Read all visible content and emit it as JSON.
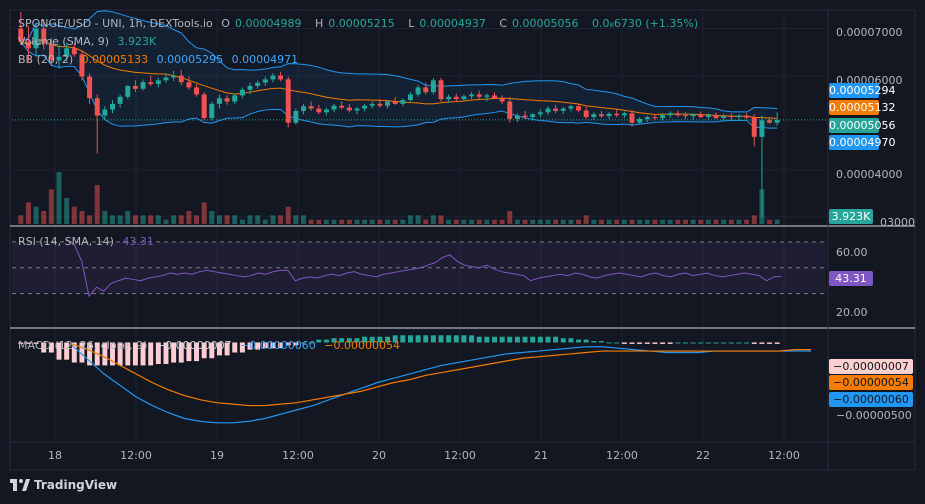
{
  "header": {
    "pair": "SPONGE/USD - UNI, 1h, DEXTools.io",
    "o_label": "O",
    "o_val": "0.00004989",
    "h_label": "H",
    "h_val": "0.00005215",
    "l_label": "L",
    "l_val": "0.00004937",
    "c_label": "C",
    "c_val": "0.00005056",
    "change": "0.0₈6730 (+1.35%)"
  },
  "volume_legend": {
    "label": "Volume (SMA, 9)",
    "value": "3.923K"
  },
  "bb_legend": {
    "label": "BB (20, 2)",
    "basis": "0.00005133",
    "upper": "0.00005295",
    "lower": "0.00004971"
  },
  "rsi_legend": {
    "label": "RSI (14, SMA, 14)",
    "value": "43.31"
  },
  "macd_legend": {
    "label": "MACD (12, 26, close, 9)",
    "hist": "−0.00000007",
    "macd": "−0.00000060",
    "signal": "−0.00000054"
  },
  "price_axis": {
    "ticks": [
      "0.00007000",
      "0.00006000",
      "0.00004000",
      "0.00003000"
    ]
  },
  "rsi_axis": {
    "ticks": [
      "60.00",
      "20.00"
    ]
  },
  "macd_axis": {
    "ticks": [
      "−0.00000500"
    ]
  },
  "tags": {
    "upper": "0.00005294",
    "basis": "0.00005132",
    "close": "0.00005056",
    "lower": "0.00004970",
    "volume": "3.923K",
    "rsi": "43.31",
    "hist": "−0.00000007",
    "signal": "−0.00000054",
    "macd": "−0.00000060"
  },
  "colors": {
    "up": "#26a69a",
    "down": "#ef5350",
    "bb": "#2196f3",
    "basis": "#f57c00",
    "rsi": "#7e57c2",
    "macd": "#2196f3",
    "signal": "#f57c00",
    "bg": "#131722"
  },
  "time_axis": {
    "labels": [
      "18",
      "12:00",
      "19",
      "12:00",
      "20",
      "12:00",
      "21",
      "12:00",
      "22",
      "12:00"
    ]
  },
  "footer": {
    "brand": "TradingView"
  },
  "chart_data": {
    "type": "candlestick",
    "xrange_hours": [
      0,
      108
    ],
    "price_ylim": [
      2.85e-05,
      7.35e-05
    ],
    "price_ticks": [
      7e-05,
      6e-05,
      4e-05,
      3e-05
    ],
    "rsi_ylim": [
      5,
      80
    ],
    "rsi_levels": [
      70,
      50,
      30
    ],
    "macd_ylim": [
      -6.8e-06,
      8e-07
    ],
    "label_hours": [
      0,
      12,
      24,
      36,
      48,
      60,
      72,
      84,
      96,
      108
    ],
    "candles": [
      [
        7e-05,
        7.35e-05,
        6.65e-05,
        6.72e-05
      ],
      [
        6.72e-05,
        7.05e-05,
        6.3e-05,
        6.58e-05
      ],
      [
        6.58e-05,
        7.12e-05,
        6.4e-05,
        7e-05
      ],
      [
        7e-05,
        7.2e-05,
        6.55e-05,
        6.68e-05
      ],
      [
        6.68e-05,
        6.8e-05,
        6.2e-05,
        6.32e-05
      ],
      [
        6.32e-05,
        6.65e-05,
        6.15e-05,
        6.4e-05
      ],
      [
        6.4e-05,
        6.7e-05,
        6.3e-05,
        6.58e-05
      ],
      [
        6.58e-05,
        6.68e-05,
        6.4e-05,
        6.45e-05
      ],
      [
        6.45e-05,
        6.52e-05,
        5.9e-05,
        5.98e-05
      ],
      [
        5.98e-05,
        6.05e-05,
        5.4e-05,
        5.52e-05
      ],
      [
        5.52e-05,
        5.6e-05,
        4.35e-05,
        5.15e-05
      ],
      [
        5.15e-05,
        5.35e-05,
        5.05e-05,
        5.28e-05
      ],
      [
        5.28e-05,
        5.48e-05,
        5.2e-05,
        5.4e-05
      ],
      [
        5.4e-05,
        5.6e-05,
        5.32e-05,
        5.55e-05
      ],
      [
        5.55e-05,
        5.8e-05,
        5.5e-05,
        5.78e-05
      ],
      [
        5.78e-05,
        5.9e-05,
        5.65e-05,
        5.72e-05
      ],
      [
        5.72e-05,
        5.92e-05,
        5.68e-05,
        5.86e-05
      ],
      [
        5.86e-05,
        6e-05,
        5.78e-05,
        5.82e-05
      ],
      [
        5.82e-05,
        5.95e-05,
        5.75e-05,
        5.9e-05
      ],
      [
        5.9e-05,
        6.05e-05,
        5.85e-05,
        5.96e-05
      ],
      [
        5.96e-05,
        6.1e-05,
        5.88e-05,
        6e-05
      ],
      [
        6e-05,
        6.12e-05,
        5.8e-05,
        5.86e-05
      ],
      [
        5.86e-05,
        5.98e-05,
        5.7e-05,
        5.75e-05
      ],
      [
        5.75e-05,
        5.82e-05,
        5.55e-05,
        5.6e-05
      ],
      [
        5.6e-05,
        5.65e-05,
        5.05e-05,
        5.1e-05
      ],
      [
        5.1e-05,
        5.45e-05,
        5.05e-05,
        5.4e-05
      ],
      [
        5.4e-05,
        5.6e-05,
        5.3e-05,
        5.52e-05
      ],
      [
        5.52e-05,
        5.58e-05,
        5.38e-05,
        5.45e-05
      ],
      [
        5.45e-05,
        5.62e-05,
        5.4e-05,
        5.58e-05
      ],
      [
        5.58e-05,
        5.75e-05,
        5.52e-05,
        5.7e-05
      ],
      [
        5.7e-05,
        5.85e-05,
        5.6e-05,
        5.78e-05
      ],
      [
        5.78e-05,
        5.9e-05,
        5.72e-05,
        5.85e-05
      ],
      [
        5.85e-05,
        5.98e-05,
        5.78e-05,
        5.92e-05
      ],
      [
        5.92e-05,
        6.05e-05,
        5.86e-05,
        6e-05
      ],
      [
        6e-05,
        6.08e-05,
        5.88e-05,
        5.92e-05
      ],
      [
        5.92e-05,
        5.98e-05,
        4.9e-05,
        5e-05
      ],
      [
        5e-05,
        5.3e-05,
        4.96e-05,
        5.25e-05
      ],
      [
        5.25e-05,
        5.4e-05,
        5.18e-05,
        5.35e-05
      ],
      [
        5.35e-05,
        5.45e-05,
        5.25e-05,
        5.3e-05
      ],
      [
        5.3e-05,
        5.38e-05,
        5.18e-05,
        5.22e-05
      ],
      [
        5.22e-05,
        5.32e-05,
        5.15e-05,
        5.28e-05
      ],
      [
        5.28e-05,
        5.4e-05,
        5.22e-05,
        5.36e-05
      ],
      [
        5.36e-05,
        5.45e-05,
        5.28e-05,
        5.32e-05
      ],
      [
        5.32e-05,
        5.4e-05,
        5.22e-05,
        5.26e-05
      ],
      [
        5.26e-05,
        5.34e-05,
        5.18e-05,
        5.3e-05
      ],
      [
        5.3e-05,
        5.4e-05,
        5.24e-05,
        5.36e-05
      ],
      [
        5.36e-05,
        5.45e-05,
        5.3e-05,
        5.4e-05
      ],
      [
        5.4e-05,
        5.5e-05,
        5.32e-05,
        5.36e-05
      ],
      [
        5.36e-05,
        5.48e-05,
        5.3e-05,
        5.45e-05
      ],
      [
        5.45e-05,
        5.55e-05,
        5.38e-05,
        5.4e-05
      ],
      [
        5.4e-05,
        5.52e-05,
        5.35e-05,
        5.48e-05
      ],
      [
        5.48e-05,
        5.65e-05,
        5.45e-05,
        5.6e-05
      ],
      [
        5.6e-05,
        5.8e-05,
        5.55e-05,
        5.75e-05
      ],
      [
        5.75e-05,
        5.85e-05,
        5.6e-05,
        5.65e-05
      ],
      [
        5.65e-05,
        5.95e-05,
        5.6e-05,
        5.9e-05
      ],
      [
        5.9e-05,
        5.95e-05,
        5.45e-05,
        5.5e-05
      ],
      [
        5.5e-05,
        5.6e-05,
        5.42e-05,
        5.55e-05
      ],
      [
        5.55e-05,
        5.62e-05,
        5.45e-05,
        5.5e-05
      ],
      [
        5.5e-05,
        5.6e-05,
        5.45e-05,
        5.56e-05
      ],
      [
        5.56e-05,
        5.65e-05,
        5.5e-05,
        5.6e-05
      ],
      [
        5.6e-05,
        5.68e-05,
        5.5e-05,
        5.55e-05
      ],
      [
        5.55e-05,
        5.62e-05,
        5.45e-05,
        5.58e-05
      ],
      [
        5.58e-05,
        5.65e-05,
        5.5e-05,
        5.52e-05
      ],
      [
        5.52e-05,
        5.58e-05,
        5.4e-05,
        5.45e-05
      ],
      [
        5.45e-05,
        5.55e-05,
        5e-05,
        5.08e-05
      ],
      [
        5.08e-05,
        5.2e-05,
        5.02e-05,
        5.15e-05
      ],
      [
        5.15e-05,
        5.25e-05,
        5.08e-05,
        5.12e-05
      ],
      [
        5.12e-05,
        5.2e-05,
        5.05e-05,
        5.18e-05
      ],
      [
        5.18e-05,
        5.28e-05,
        5.12e-05,
        5.22e-05
      ],
      [
        5.22e-05,
        5.35e-05,
        5.16e-05,
        5.3e-05
      ],
      [
        5.3e-05,
        5.38e-05,
        5.2e-05,
        5.25e-05
      ],
      [
        5.25e-05,
        5.34e-05,
        5.18e-05,
        5.3e-05
      ],
      [
        5.3e-05,
        5.38e-05,
        5.24e-05,
        5.35e-05
      ],
      [
        5.35e-05,
        5.4e-05,
        5.22e-05,
        5.26e-05
      ],
      [
        5.26e-05,
        5.34e-05,
        5.08e-05,
        5.12e-05
      ],
      [
        5.12e-05,
        5.22e-05,
        5.06e-05,
        5.18e-05
      ],
      [
        5.18e-05,
        5.25e-05,
        5.1e-05,
        5.14e-05
      ],
      [
        5.14e-05,
        5.22e-05,
        5.08e-05,
        5.19e-05
      ],
      [
        5.19e-05,
        5.28e-05,
        5.12e-05,
        5.16e-05
      ],
      [
        5.16e-05,
        5.24e-05,
        5.1e-05,
        5.2e-05
      ],
      [
        5.2e-05,
        5.26e-05,
        4.92e-05,
        5e-05
      ],
      [
        5e-05,
        5.12e-05,
        4.96e-05,
        5.08e-05
      ],
      [
        5.08e-05,
        5.15e-05,
        5.02e-05,
        5.12e-05
      ],
      [
        5.12e-05,
        5.18e-05,
        5.05e-05,
        5.1e-05
      ],
      [
        5.1e-05,
        5.2e-05,
        5.05e-05,
        5.16e-05
      ],
      [
        5.16e-05,
        5.24e-05,
        5.1e-05,
        5.2e-05
      ],
      [
        5.2e-05,
        5.26e-05,
        5.12e-05,
        5.16e-05
      ],
      [
        5.16e-05,
        5.22e-05,
        5.08e-05,
        5.14e-05
      ],
      [
        5.14e-05,
        5.2e-05,
        5.06e-05,
        5.18e-05
      ],
      [
        5.18e-05,
        5.24e-05,
        5.1e-05,
        5.12e-05
      ],
      [
        5.12e-05,
        5.2e-05,
        5.06e-05,
        5.16e-05
      ],
      [
        5.16e-05,
        5.22e-05,
        5.08e-05,
        5.1e-05
      ],
      [
        5.1e-05,
        5.18e-05,
        5.04e-05,
        5.14e-05
      ],
      [
        5.14e-05,
        5.2e-05,
        5.06e-05,
        5.12e-05
      ],
      [
        5.12e-05,
        5.18e-05,
        5.06e-05,
        5.15e-05
      ],
      [
        5.15e-05,
        5.2e-05,
        5.08e-05,
        5.11e-05
      ],
      [
        5.11e-05,
        5.18e-05,
        4.5e-05,
        4.7e-05
      ],
      [
        4.7e-05,
        5.15e-05,
        3e-05,
        5.05e-05
      ],
      [
        5.05e-05,
        5.12e-05,
        4.98e-05,
        5e-05
      ],
      [
        5e-05,
        5.22e-05,
        4.94e-05,
        5.06e-05
      ]
    ],
    "volume": [
      2,
      5,
      4,
      3,
      8,
      12,
      6,
      4,
      3,
      2,
      9,
      3,
      2,
      2,
      3,
      2,
      2,
      2,
      2,
      1,
      2,
      2,
      3,
      2,
      5,
      3,
      2,
      2,
      2,
      1,
      2,
      2,
      1,
      2,
      2,
      4,
      2,
      2,
      1,
      1,
      1,
      1,
      1,
      1,
      1,
      1,
      1,
      1,
      1,
      1,
      1,
      2,
      2,
      1,
      2,
      2,
      1,
      1,
      1,
      1,
      1,
      1,
      1,
      1,
      3,
      1,
      1,
      1,
      1,
      1,
      1,
      1,
      1,
      1,
      2,
      1,
      1,
      1,
      1,
      1,
      1,
      1,
      1,
      1,
      1,
      1,
      1,
      1,
      1,
      1,
      1,
      1,
      1,
      1,
      1,
      1,
      2,
      8,
      1,
      1
    ],
    "rsi": [
      72,
      68,
      55,
      28,
      35,
      32,
      38,
      40,
      42,
      41,
      40,
      42,
      43,
      44,
      46,
      45,
      46,
      45,
      47,
      48,
      47,
      46,
      45,
      44,
      43,
      44,
      46,
      45,
      47,
      48,
      48,
      40,
      42,
      43,
      42,
      44,
      45,
      44,
      46,
      47,
      45,
      44,
      43,
      45,
      46,
      47,
      48,
      49,
      50,
      52,
      54,
      58,
      60,
      55,
      52,
      51,
      50,
      52,
      49,
      47,
      46,
      45,
      44,
      40,
      42,
      43,
      44,
      45,
      44,
      46,
      45,
      43,
      42,
      44,
      45,
      46,
      45,
      44,
      43,
      45,
      46,
      44,
      43,
      45,
      46,
      44,
      45,
      46,
      44,
      43,
      44,
      45,
      46,
      45,
      44,
      40,
      43,
      43.31
    ],
    "macd": [
      -2e-07,
      -1.2e-06,
      -2.2e-06,
      -3e-06,
      -3.8e-06,
      -4.4e-06,
      -4.9e-06,
      -5.3e-06,
      -5.5e-06,
      -5.6e-06,
      -5.6e-06,
      -5.5e-06,
      -5.3e-06,
      -5e-06,
      -4.7e-06,
      -4.4e-06,
      -4e-06,
      -3.6e-06,
      -3.2e-06,
      -2.8e-06,
      -2.5e-06,
      -2.2e-06,
      -1.9e-06,
      -1.6e-06,
      -1.4e-06,
      -1.2e-06,
      -1e-06,
      -8e-07,
      -7e-07,
      -6e-07,
      -5e-07,
      -4e-07,
      -3e-07,
      -3e-07,
      -4e-07,
      -5e-07,
      -6e-07,
      -7e-07,
      -7e-07,
      -7e-07,
      -6e-07,
      -6e-07,
      -6e-07,
      -6e-07,
      -6e-07,
      -6e-07,
      -6e-07
    ],
    "signal": [
      -1e-07,
      -5e-07,
      -1e-06,
      -1.6e-06,
      -2.2e-06,
      -2.8e-06,
      -3.3e-06,
      -3.7e-06,
      -4e-06,
      -4.2e-06,
      -4.3e-06,
      -4.4e-06,
      -4.4e-06,
      -4.3e-06,
      -4.2e-06,
      -4e-06,
      -3.8e-06,
      -3.6e-06,
      -3.4e-06,
      -3.1e-06,
      -2.8e-06,
      -2.6e-06,
      -2.3e-06,
      -2.1e-06,
      -1.9e-06,
      -1.7e-06,
      -1.5e-06,
      -1.3e-06,
      -1.1e-06,
      -1e-06,
      -9e-07,
      -8e-07,
      -7e-07,
      -6e-07,
      -6e-07,
      -6e-07,
      -6e-07,
      -6e-07,
      -6e-07,
      -6e-07,
      -6e-07,
      -6e-07,
      -6e-07,
      -6e-07,
      -6e-07,
      -5e-07,
      -5e-07
    ]
  }
}
